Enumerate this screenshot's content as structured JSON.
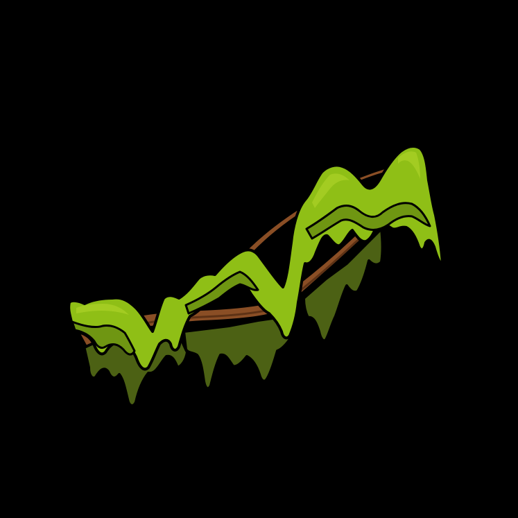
{
  "scene": {
    "subject": "moss-covered-branch",
    "colors": {
      "background": "#000000",
      "moss_light": "#8fbf16",
      "moss_highlight": "#a3cc22",
      "moss_mid": "#6f9612",
      "moss_dark": "#4c6114",
      "branch": "#8a4e25",
      "branch_dark": "#5e3215",
      "outline": "#000000"
    }
  }
}
